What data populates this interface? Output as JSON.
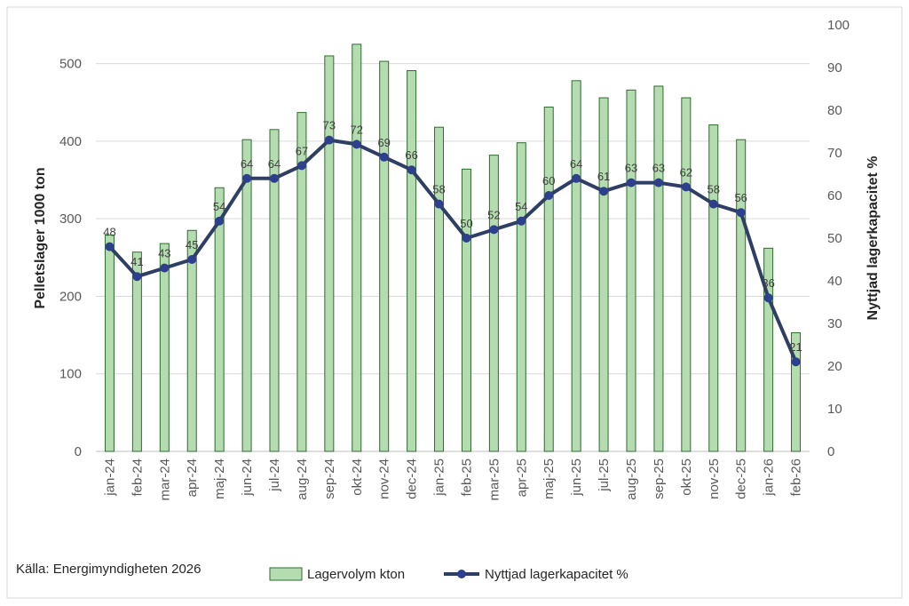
{
  "chart_data": {
    "type": "bar+line",
    "categories": [
      "jan-24",
      "feb-24",
      "mar-24",
      "apr-24",
      "maj-24",
      "jun-24",
      "jul-24",
      "aug-24",
      "sep-24",
      "okt-24",
      "nov-24",
      "dec-24",
      "jan-25",
      "feb-25",
      "mar-25",
      "apr-25",
      "maj-25",
      "jun-25",
      "jul-25",
      "aug-25",
      "sep-25",
      "okt-25",
      "nov-25",
      "dec-25",
      "jan-26",
      "feb-26"
    ],
    "series": [
      {
        "name": "Lagervolym kton",
        "type": "bar",
        "axis": "left",
        "color": "#b5dcb0",
        "edge_color": "#2e6b2e",
        "values": [
          279,
          257,
          268,
          285,
          340,
          402,
          415,
          437,
          510,
          525,
          503,
          491,
          418,
          364,
          382,
          398,
          444,
          478,
          456,
          466,
          471,
          456,
          421,
          402,
          262,
          153
        ]
      },
      {
        "name": "Nyttjad lagerkapacitet %",
        "type": "line",
        "axis": "right",
        "color": "#2e3f63",
        "marker_color": "#2f3f8f",
        "values": [
          48,
          41,
          43,
          45,
          54,
          64,
          64,
          67,
          73,
          72,
          69,
          66,
          58,
          50,
          52,
          54,
          60,
          64,
          61,
          63,
          63,
          62,
          58,
          56,
          36,
          21
        ]
      }
    ],
    "ylabel": "Pelletslager 1000 ton",
    "y2label": "Nyttjad lagerkapacitet %",
    "ylim": [
      0,
      550
    ],
    "y2lim": [
      0,
      100
    ],
    "yticks": [
      0,
      100,
      200,
      300,
      400,
      500
    ],
    "y2ticks": [
      0,
      10,
      20,
      30,
      40,
      50,
      60,
      70,
      80,
      90,
      100
    ],
    "grid": true,
    "legend_placement": "bottom",
    "source": "Källa: Energimyndigheten 2026"
  }
}
